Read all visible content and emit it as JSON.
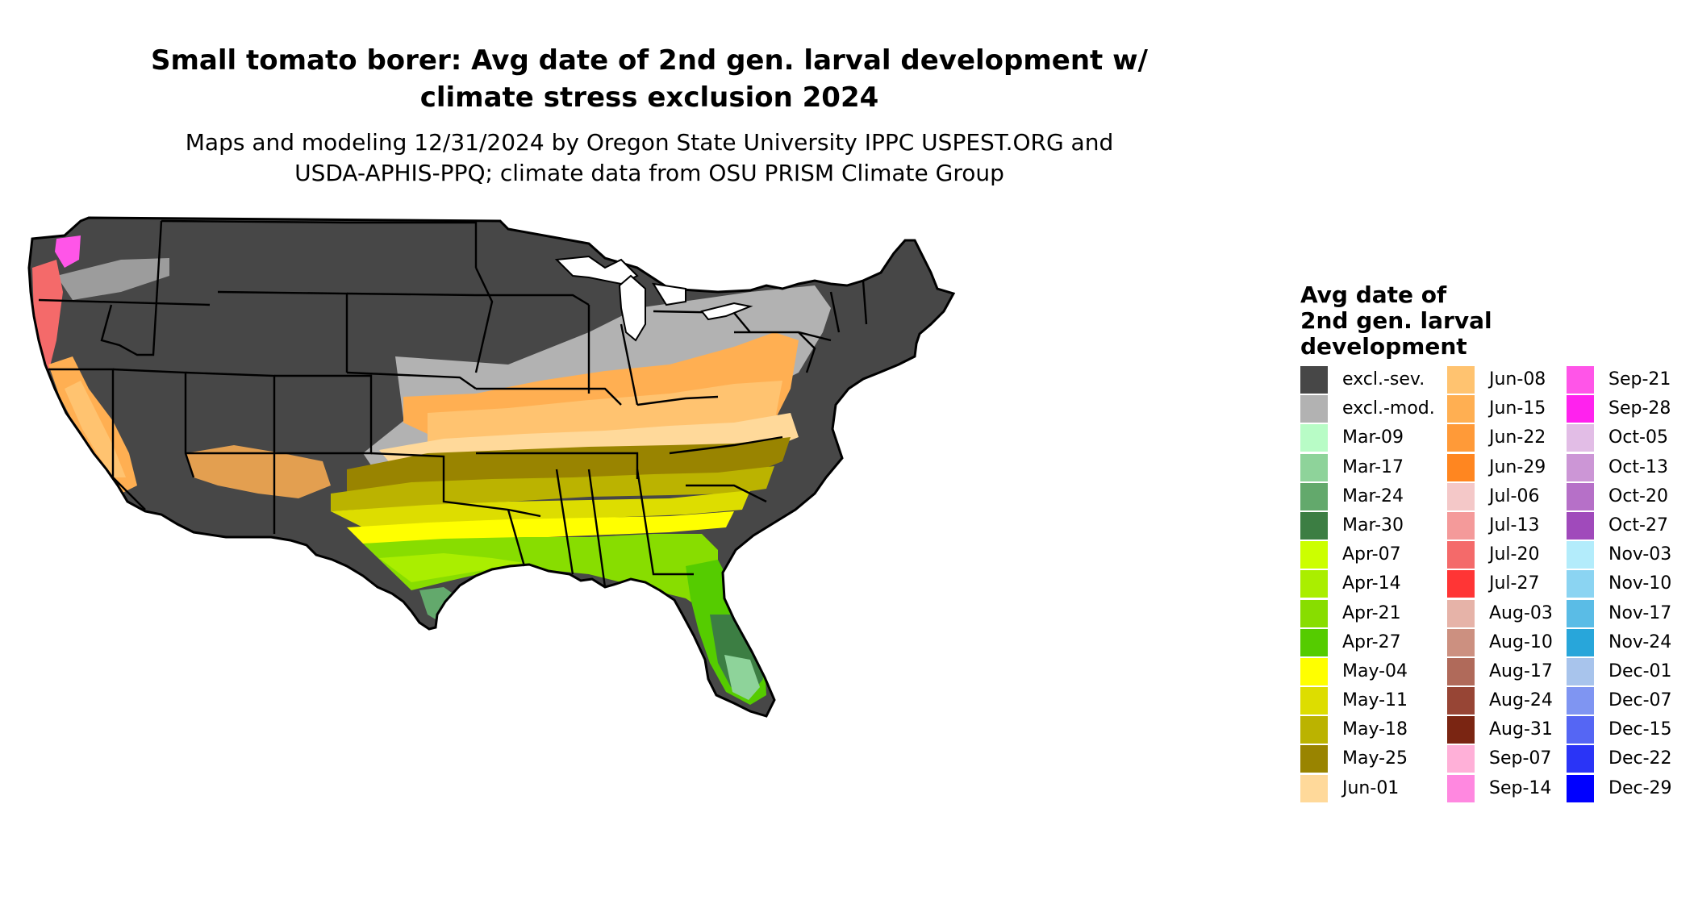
{
  "title_lines": [
    "Small tomato borer: Avg date of 2nd gen. larval development w/",
    "climate stress exclusion 2024"
  ],
  "subtitle_lines": [
    "Maps and modeling 12/31/2024 by Oregon State University IPPC USPEST.ORG and",
    "USDA-APHIS-PPQ; climate data from OSU PRISM Climate Group"
  ],
  "legend": {
    "title_lines": [
      "Avg date of",
      "2nd gen. larval",
      "development"
    ],
    "columns": [
      [
        {
          "label": "excl.-sev.",
          "color": "#474747"
        },
        {
          "label": "excl.-mod.",
          "color": "#b2b2b2"
        },
        {
          "label": "Mar-09",
          "color": "#b8fcc6"
        },
        {
          "label": "Mar-17",
          "color": "#8ed39a"
        },
        {
          "label": "Mar-24",
          "color": "#63a96c"
        },
        {
          "label": "Mar-30",
          "color": "#3c7e43"
        },
        {
          "label": "Apr-07",
          "color": "#ccff00"
        },
        {
          "label": "Apr-14",
          "color": "#aaee00"
        },
        {
          "label": "Apr-21",
          "color": "#88dd00"
        },
        {
          "label": "Apr-27",
          "color": "#55cc00"
        },
        {
          "label": "May-04",
          "color": "#ffff00"
        },
        {
          "label": "May-11",
          "color": "#dddd00"
        },
        {
          "label": "May-18",
          "color": "#bbb300"
        },
        {
          "label": "May-25",
          "color": "#998400"
        },
        {
          "label": "Jun-01",
          "color": "#ffd99a"
        }
      ],
      [
        {
          "label": "Jun-08",
          "color": "#ffc370"
        },
        {
          "label": "Jun-15",
          "color": "#ffaf52"
        },
        {
          "label": "Jun-22",
          "color": "#ff9a38"
        },
        {
          "label": "Jun-29",
          "color": "#ff8620"
        },
        {
          "label": "Jul-06",
          "color": "#f4c8c8"
        },
        {
          "label": "Jul-13",
          "color": "#f49a9a"
        },
        {
          "label": "Jul-20",
          "color": "#f46a6a"
        },
        {
          "label": "Jul-27",
          "color": "#ff3535"
        },
        {
          "label": "Aug-03",
          "color": "#e6b3a8"
        },
        {
          "label": "Aug-10",
          "color": "#cc9080"
        },
        {
          "label": "Aug-17",
          "color": "#b06a5a"
        },
        {
          "label": "Aug-24",
          "color": "#974535"
        },
        {
          "label": "Aug-31",
          "color": "#7a2512"
        },
        {
          "label": "Sep-07",
          "color": "#ffb0d8"
        },
        {
          "label": "Sep-14",
          "color": "#ff88e0"
        }
      ],
      [
        {
          "label": "Sep-21",
          "color": "#ff55e8"
        },
        {
          "label": "Sep-28",
          "color": "#ff22ee"
        },
        {
          "label": "Oct-05",
          "color": "#e2bde6"
        },
        {
          "label": "Oct-13",
          "color": "#cc96d6"
        },
        {
          "label": "Oct-20",
          "color": "#b670c8"
        },
        {
          "label": "Oct-27",
          "color": "#a04abb"
        },
        {
          "label": "Nov-03",
          "color": "#b3ecfb"
        },
        {
          "label": "Nov-10",
          "color": "#8bd4f2"
        },
        {
          "label": "Nov-17",
          "color": "#5abce6"
        },
        {
          "label": "Nov-24",
          "color": "#28a6da"
        },
        {
          "label": "Dec-01",
          "color": "#a8c4ec"
        },
        {
          "label": "Dec-07",
          "color": "#7f95f2"
        },
        {
          "label": "Dec-15",
          "color": "#5566f4"
        },
        {
          "label": "Dec-22",
          "color": "#2a34f7"
        },
        {
          "label": "Dec-29",
          "color": "#0000ff"
        }
      ]
    ]
  }
}
